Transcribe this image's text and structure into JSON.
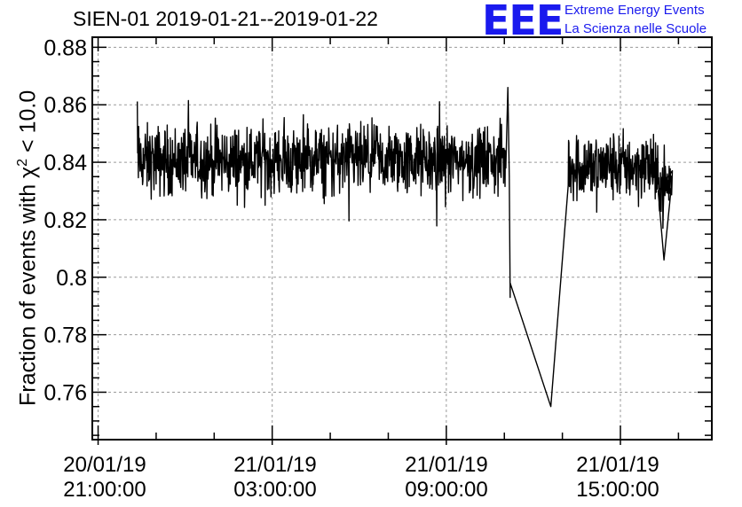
{
  "chart_data": {
    "type": "line",
    "title": "SIEN-01 2019-01-21--2019-01-22",
    "ylabel_prefix": "Fraction of events with ",
    "ylabel_symbol": "χ",
    "ylabel_exponent": "2",
    "ylabel_suffix": " < 10.0",
    "ylim": [
      0.7435,
      0.8835
    ],
    "yticks": [
      "0.76",
      "0.78",
      "0.8",
      "0.82",
      "0.84",
      "0.86",
      "0.88"
    ],
    "xlim_hours": [
      -0.2,
      21.15
    ],
    "xticks": [
      {
        "date": "20/01/19",
        "time": "21:00:00",
        "hour": 0
      },
      {
        "date": "21/01/19",
        "time": "03:00:00",
        "hour": 6
      },
      {
        "date": "21/01/19",
        "time": "09:00:00",
        "hour": 12
      },
      {
        "date": "21/01/19",
        "time": "15:00:00",
        "hour": 18
      }
    ],
    "grid": true,
    "series": [
      {
        "segments": [
          {
            "t_start": 1.35,
            "t_end": 14.05,
            "mean": 0.8405,
            "amplitude": 0.0085
          },
          {
            "t_start": 16.2,
            "t_end": 19.8,
            "mean": 0.8385,
            "amplitude": 0.0085
          }
        ],
        "points": [
          {
            "t": 14.05,
            "y": 0.838
          },
          {
            "t": 14.12,
            "y": 0.866
          },
          {
            "t": 14.17,
            "y": 0.835
          },
          {
            "t": 14.2,
            "y": 0.793
          },
          {
            "t": 14.2,
            "y": 0.798
          },
          {
            "t": 15.6,
            "y": 0.755
          },
          {
            "t": 16.2,
            "y": 0.84
          },
          {
            "t": 19.3,
            "y": 0.83
          },
          {
            "t": 19.5,
            "y": 0.806
          },
          {
            "t": 19.75,
            "y": 0.831
          }
        ],
        "color": "#000000"
      }
    ]
  },
  "logo": {
    "mark": "EEE",
    "line1": "Extreme Energy Events",
    "line2": "La Scienza nelle Scuole"
  }
}
